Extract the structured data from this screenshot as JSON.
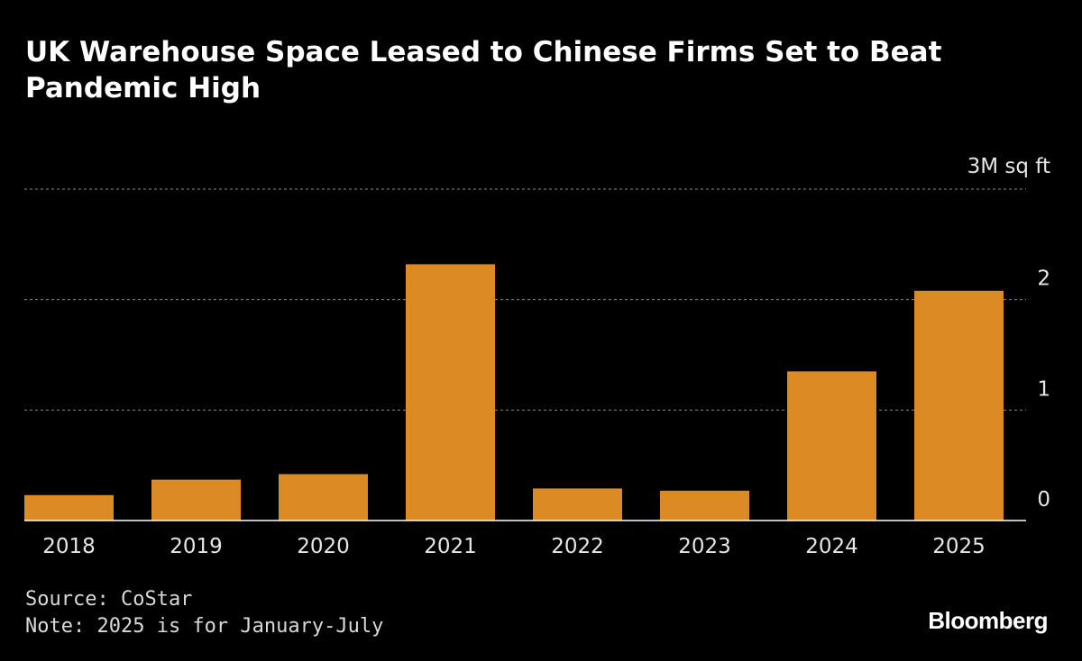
{
  "chart_data": {
    "type": "bar",
    "title": "UK Warehouse Space Leased to Chinese Firms Set to Beat Pandemic High",
    "unit_label": "3M sq ft",
    "categories": [
      "2018",
      "2019",
      "2020",
      "2021",
      "2022",
      "2023",
      "2024",
      "2025"
    ],
    "values": [
      0.23,
      0.37,
      0.42,
      2.32,
      0.29,
      0.27,
      1.35,
      2.08
    ],
    "ylim": [
      0,
      3
    ],
    "yticks": [
      "0",
      "1",
      "2"
    ],
    "grid": true,
    "bar_color": "#DB8A24",
    "background": "#000000"
  },
  "footer": {
    "source": "Source: CoStar",
    "note": "Note: 2025 is for January-July"
  },
  "brand": {
    "logo_text": "Bloomberg"
  }
}
